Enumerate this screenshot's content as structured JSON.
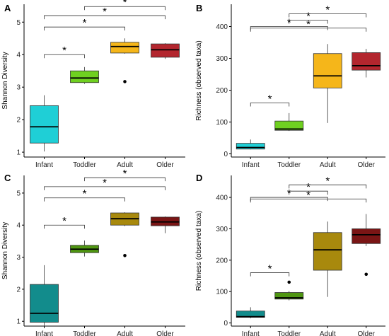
{
  "chart_data": [
    {
      "panel": "A",
      "type": "box",
      "ylabel": "Shannon Diversity",
      "categories": [
        "Infant",
        "Toddler",
        "Adult",
        "Older"
      ],
      "ylim": [
        0.85,
        5.55
      ],
      "yticks": [
        1,
        2,
        3,
        4,
        5
      ],
      "colors": [
        "#1fcfd6",
        "#6fd020",
        "#f5b61a",
        "#b3262e"
      ],
      "boxes": [
        {
          "min": 1.02,
          "q1": 1.28,
          "median": 1.78,
          "q3": 2.43,
          "max": 2.75,
          "outliers": []
        },
        {
          "min": 3.1,
          "q1": 3.14,
          "median": 3.28,
          "q3": 3.5,
          "max": 3.62,
          "outliers": []
        },
        {
          "min": 4.03,
          "q1": 4.05,
          "median": 4.25,
          "q3": 4.38,
          "max": 4.5,
          "outliers": [
            3.17
          ]
        },
        {
          "min": 3.87,
          "q1": 3.92,
          "median": 4.15,
          "q3": 4.33,
          "max": 4.35,
          "outliers": []
        }
      ],
      "significance": [
        {
          "from": "Infant",
          "to": "Toddler",
          "y": 4.0,
          "label": "*"
        },
        {
          "from": "Infant",
          "to": "Adult",
          "y": 4.85,
          "label": "*"
        },
        {
          "from": "Infant",
          "to": "Older",
          "y": 5.2,
          "label": "*"
        },
        {
          "from": "Toddler",
          "to": "Older",
          "y": 5.48,
          "label": "*"
        }
      ]
    },
    {
      "panel": "B",
      "type": "box",
      "ylabel": "Richness (observed taxa)",
      "categories": [
        "Infant",
        "Toddler",
        "Adult",
        "Older"
      ],
      "ylim": [
        -10,
        470
      ],
      "yticks": [
        0,
        100,
        200,
        300,
        400
      ],
      "colors": [
        "#1fcfd6",
        "#6fd020",
        "#f5b61a",
        "#b3262e"
      ],
      "boxes": [
        {
          "min": 14,
          "q1": 15,
          "median": 20,
          "q3": 33,
          "max": 45,
          "outliers": []
        },
        {
          "min": 72,
          "q1": 74,
          "median": 78,
          "q3": 103,
          "max": 128,
          "outliers": []
        },
        {
          "min": 97,
          "q1": 207,
          "median": 245,
          "q3": 315,
          "max": 345,
          "outliers": []
        },
        {
          "min": 240,
          "q1": 263,
          "median": 277,
          "q3": 318,
          "max": 330,
          "outliers": []
        }
      ],
      "significance": [
        {
          "from": "Infant",
          "to": "Toddler",
          "y": 160,
          "label": "*"
        },
        {
          "from": "Infant",
          "to": "Adult",
          "y": 400,
          "label": "*"
        },
        {
          "from": "Infant",
          "to": "Older",
          "y": 395,
          "label": "*"
        },
        {
          "from": "Toddler",
          "to": "Adult",
          "y": 420,
          "label": "*"
        },
        {
          "from": "Toddler",
          "to": "Older",
          "y": 440,
          "label": "*"
        }
      ]
    },
    {
      "panel": "C",
      "type": "box",
      "ylabel": "Shannon Diversity",
      "categories": [
        "Infant",
        "Toddler",
        "Adult",
        "Older"
      ],
      "ylim": [
        0.85,
        5.55
      ],
      "yticks": [
        1,
        2,
        3,
        4,
        5
      ],
      "colors": [
        "#128c8c",
        "#4f9612",
        "#a8890d",
        "#7a1515"
      ],
      "boxes": [
        {
          "min": 0.85,
          "q1": 0.97,
          "median": 1.25,
          "q3": 2.15,
          "max": 2.75,
          "outliers": []
        },
        {
          "min": 3.02,
          "q1": 3.14,
          "median": 3.25,
          "q3": 3.37,
          "max": 3.52,
          "outliers": []
        },
        {
          "min": 3.97,
          "q1": 4.0,
          "median": 4.2,
          "q3": 4.38,
          "max": 4.4,
          "outliers": [
            3.05
          ]
        },
        {
          "min": 3.75,
          "q1": 3.98,
          "median": 4.1,
          "q3": 4.25,
          "max": 4.27,
          "outliers": []
        }
      ],
      "significance": [
        {
          "from": "Infant",
          "to": "Toddler",
          "y": 4.0,
          "label": "*"
        },
        {
          "from": "Infant",
          "to": "Adult",
          "y": 4.85,
          "label": "*"
        },
        {
          "from": "Infant",
          "to": "Older",
          "y": 5.2,
          "label": "*"
        },
        {
          "from": "Toddler",
          "to": "Older",
          "y": 5.48,
          "label": "*"
        }
      ]
    },
    {
      "panel": "D",
      "type": "box",
      "ylabel": "Richness (observed taxa)",
      "categories": [
        "Infant",
        "Toddler",
        "Adult",
        "Older"
      ],
      "ylim": [
        -10,
        470
      ],
      "yticks": [
        0,
        100,
        200,
        300,
        400
      ],
      "colors": [
        "#128c8c",
        "#4f9612",
        "#a8890d",
        "#7a1515"
      ],
      "boxes": [
        {
          "min": 15,
          "q1": 18,
          "median": 20,
          "q3": 38,
          "max": 50,
          "outliers": []
        },
        {
          "min": 72,
          "q1": 76,
          "median": 80,
          "q3": 97,
          "max": 102,
          "outliers": [
            130
          ]
        },
        {
          "min": 83,
          "q1": 168,
          "median": 233,
          "q3": 288,
          "max": 323,
          "outliers": []
        },
        {
          "min": 245,
          "q1": 253,
          "median": 281,
          "q3": 300,
          "max": 347,
          "outliers": [
            155
          ]
        }
      ],
      "significance": [
        {
          "from": "Infant",
          "to": "Toddler",
          "y": 160,
          "label": "*"
        },
        {
          "from": "Infant",
          "to": "Adult",
          "y": 400,
          "label": "*"
        },
        {
          "from": "Infant",
          "to": "Older",
          "y": 395,
          "label": "*"
        },
        {
          "from": "Toddler",
          "to": "Adult",
          "y": 420,
          "label": "*"
        },
        {
          "from": "Toddler",
          "to": "Older",
          "y": 440,
          "label": "*"
        }
      ]
    }
  ]
}
